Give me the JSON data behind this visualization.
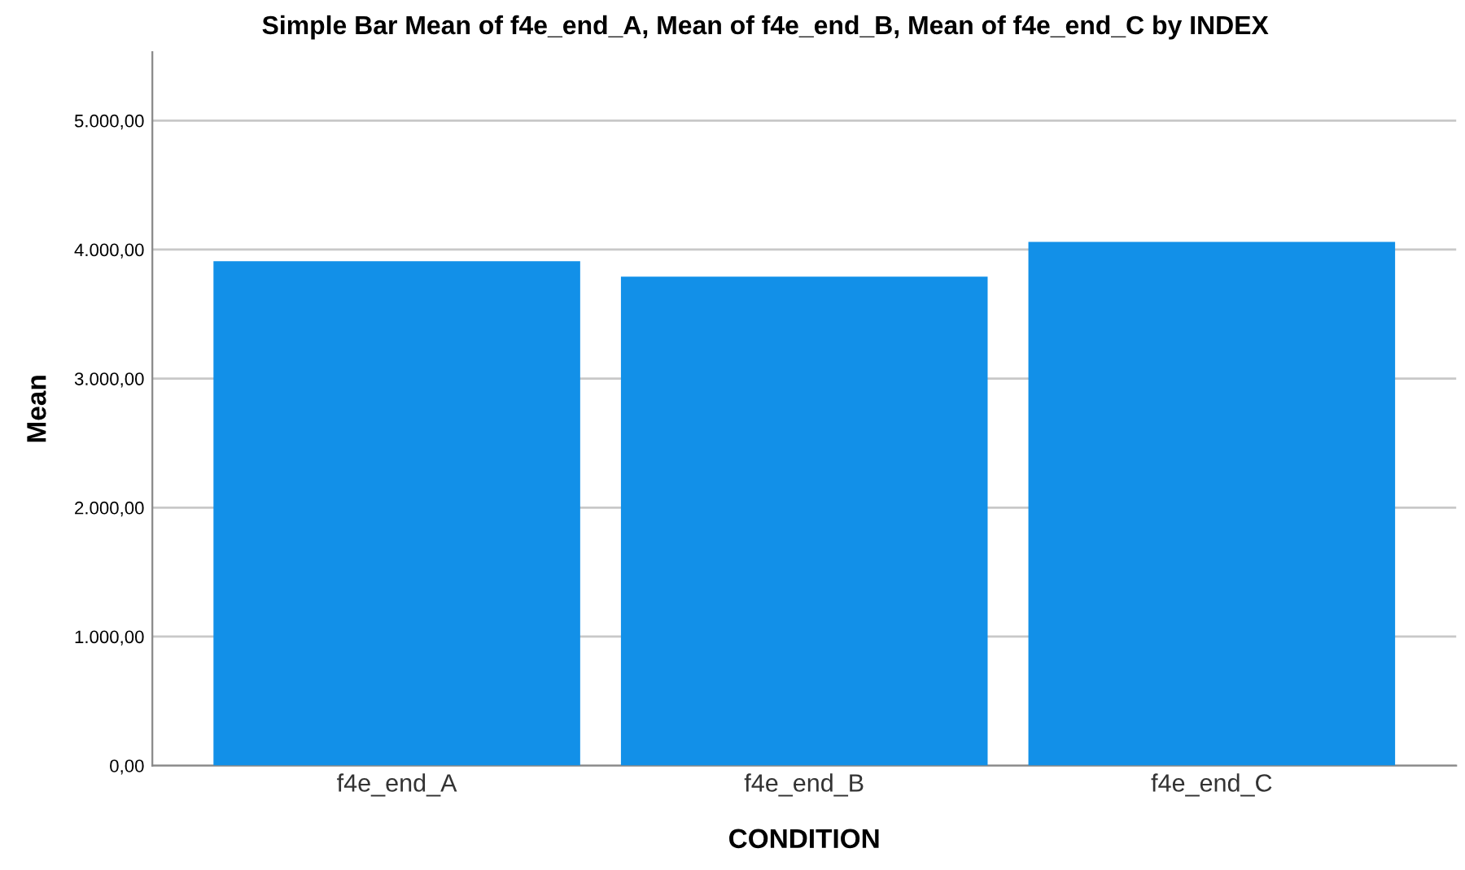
{
  "chart_data": {
    "type": "bar",
    "title": "Simple Bar Mean of f4e_end_A, Mean of f4e_end_B, Mean of f4e_end_C by INDEX",
    "xlabel": "CONDITION",
    "ylabel": "Mean",
    "categories": [
      "f4e_end_A",
      "f4e_end_B",
      "f4e_end_C"
    ],
    "values": [
      3910,
      3790,
      4060
    ],
    "color": "#1290e8",
    "ylim": [
      0,
      5530
    ],
    "yticks": [
      {
        "value": 0,
        "label": "0,00"
      },
      {
        "value": 1000,
        "label": "1.000,00"
      },
      {
        "value": 2000,
        "label": "2.000,00"
      },
      {
        "value": 3000,
        "label": "3.000,00"
      },
      {
        "value": 4000,
        "label": "4.000,00"
      },
      {
        "value": 5000,
        "label": "5.000,00"
      }
    ],
    "grid": "y"
  }
}
